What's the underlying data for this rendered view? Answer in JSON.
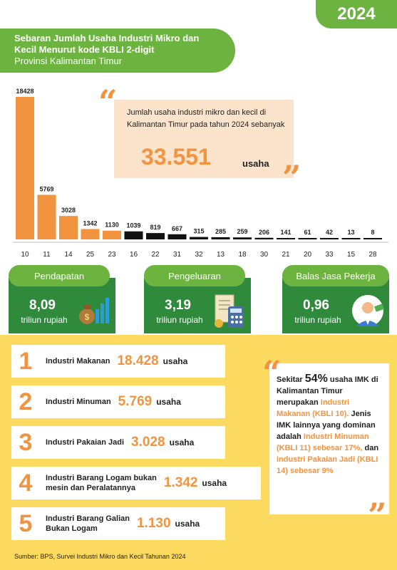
{
  "header": {
    "year": "2024",
    "title_line1": "Sebaran Jumlah Usaha Industri Mikro dan",
    "title_line2": "Kecil Menurut kode KBLI 2-digit",
    "subtitle": "Provinsi Kalimantan Timur"
  },
  "chart_data": {
    "type": "bar",
    "title": "Sebaran Jumlah Usaha Industri Mikro dan Kecil Menurut kode KBLI 2-digit",
    "categories": [
      "10",
      "11",
      "14",
      "25",
      "23",
      "16",
      "22",
      "31",
      "32",
      "13",
      "18",
      "30",
      "21",
      "20",
      "33",
      "15",
      "28"
    ],
    "values": [
      18428,
      5769,
      3028,
      1342,
      1130,
      1039,
      819,
      667,
      315,
      285,
      259,
      206,
      141,
      61,
      42,
      13,
      8
    ],
    "value_labels": [
      "18428",
      "5769",
      "3028",
      "1342",
      "1130",
      "1039",
      "819",
      "667",
      "315",
      "285",
      "259",
      "206",
      "141",
      "61",
      "42",
      "13",
      "8"
    ],
    "ylim": [
      0,
      18428
    ],
    "grid": false,
    "colors": {
      "highlight": "#f29340",
      "other": "#111111"
    },
    "highlight_count": 5
  },
  "quote": {
    "text": "Jumlah usaha industri mikro dan kecil di Kalimantan Timur pada tahun 2024 sebanyak",
    "value": "33.551",
    "unit": "usaha"
  },
  "stats": [
    {
      "label": "Pendapatan",
      "value": "8,09",
      "unit": "triliun rupiah",
      "icon": "money-bag-chart-icon"
    },
    {
      "label": "Pengeluaran",
      "value": "3,19",
      "unit": "triliun rupiah",
      "icon": "calculator-bill-icon"
    },
    {
      "label": "Balas Jasa Pekerja",
      "value": "0,96",
      "unit": "triliun rupiah",
      "icon": "worker-money-icon"
    }
  ],
  "ranking": [
    {
      "rank": "1",
      "label": "Industri Makanan",
      "value": "18.428",
      "unit": "usaha"
    },
    {
      "rank": "2",
      "label": "Industri Minuman",
      "value": "5.769",
      "unit": "usaha"
    },
    {
      "rank": "3",
      "label": "Industri Pakaian Jadi",
      "value": "3.028",
      "unit": "usaha"
    },
    {
      "rank": "4",
      "label_line1": "Industri Barang Logam bukan",
      "label_line2": "mesin dan Peralatannya",
      "value": "1.342",
      "unit": "usaha"
    },
    {
      "rank": "5",
      "label_line1": "Industri Barang Galian",
      "label_line2": "Bukan Logam",
      "value": "1.130",
      "unit": "usaha"
    }
  ],
  "note": {
    "p1": "Sekitar",
    "pct": "54%",
    "p2": "usaha IMK di Kalimantan Timur merupakan",
    "h1": "Industri Makanan (KBLI 10).",
    "p3": "Jenis IMK lainnya yang dominan adalah",
    "h2": "Industri Minuman (KBLI 11) sebesar 17%,",
    "p4": "dan",
    "h3": "Industri Pakaian Jadi (KBLI 14) sebesar 9%"
  },
  "source": "Sumber: BPS, Survei Industri Mikro dan Kecil Tahunan 2024",
  "colors": {
    "green": "#6db33f",
    "dark_green": "#2f8a3c",
    "orange": "#f29340",
    "yellow": "#fcd95f"
  }
}
